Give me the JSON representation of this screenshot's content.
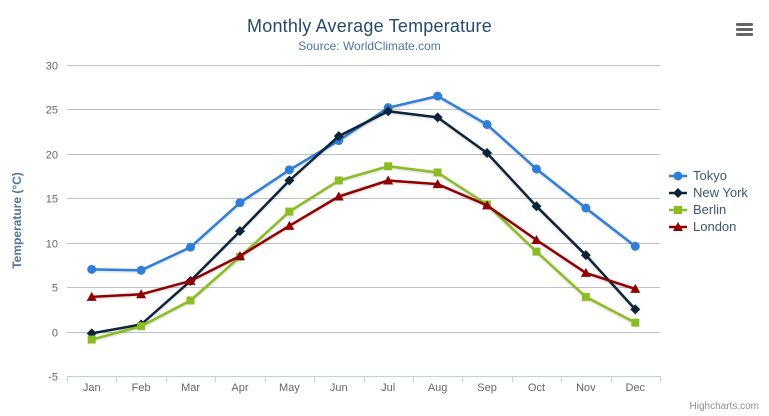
{
  "chart_data": {
    "type": "line",
    "title": "Monthly Average Temperature",
    "subtitle": "Source: WorldClimate.com",
    "ylabel": "Temperature (°C)",
    "xlabel": "",
    "ylim": [
      -5,
      30
    ],
    "ytick_interval": 5,
    "grid": true,
    "legend_position": "right-middle",
    "categories": [
      "Jan",
      "Feb",
      "Mar",
      "Apr",
      "May",
      "Jun",
      "Jul",
      "Aug",
      "Sep",
      "Oct",
      "Nov",
      "Dec"
    ],
    "series": [
      {
        "name": "Tokyo",
        "color": "#2f7ed8",
        "marker": "circle",
        "values": [
          7.0,
          6.9,
          9.5,
          14.5,
          18.2,
          21.5,
          25.2,
          26.5,
          23.3,
          18.3,
          13.9,
          9.6
        ]
      },
      {
        "name": "New York",
        "color": "#0d233a",
        "marker": "diamond",
        "values": [
          -0.2,
          0.8,
          5.7,
          11.3,
          17.0,
          22.0,
          24.8,
          24.1,
          20.1,
          14.1,
          8.6,
          2.5
        ]
      },
      {
        "name": "Berlin",
        "color": "#8bbc21",
        "marker": "square",
        "values": [
          -0.9,
          0.6,
          3.5,
          8.4,
          13.5,
          17.0,
          18.6,
          17.9,
          14.3,
          9.0,
          3.9,
          1.0
        ]
      },
      {
        "name": "London",
        "color": "#910000",
        "marker": "triangle",
        "values": [
          3.9,
          4.2,
          5.7,
          8.5,
          11.9,
          15.2,
          17.0,
          16.6,
          14.2,
          10.3,
          6.6,
          4.8
        ]
      }
    ],
    "axis_colors": {
      "grid_line": "#C0C0C0",
      "axis_line": "#C0D0E0",
      "labels": "#666666",
      "axis_title": "#4d759e"
    }
  },
  "header": {
    "export_menu_icon": "hamburger-icon"
  },
  "credits": {
    "label": "Highcharts.com"
  }
}
